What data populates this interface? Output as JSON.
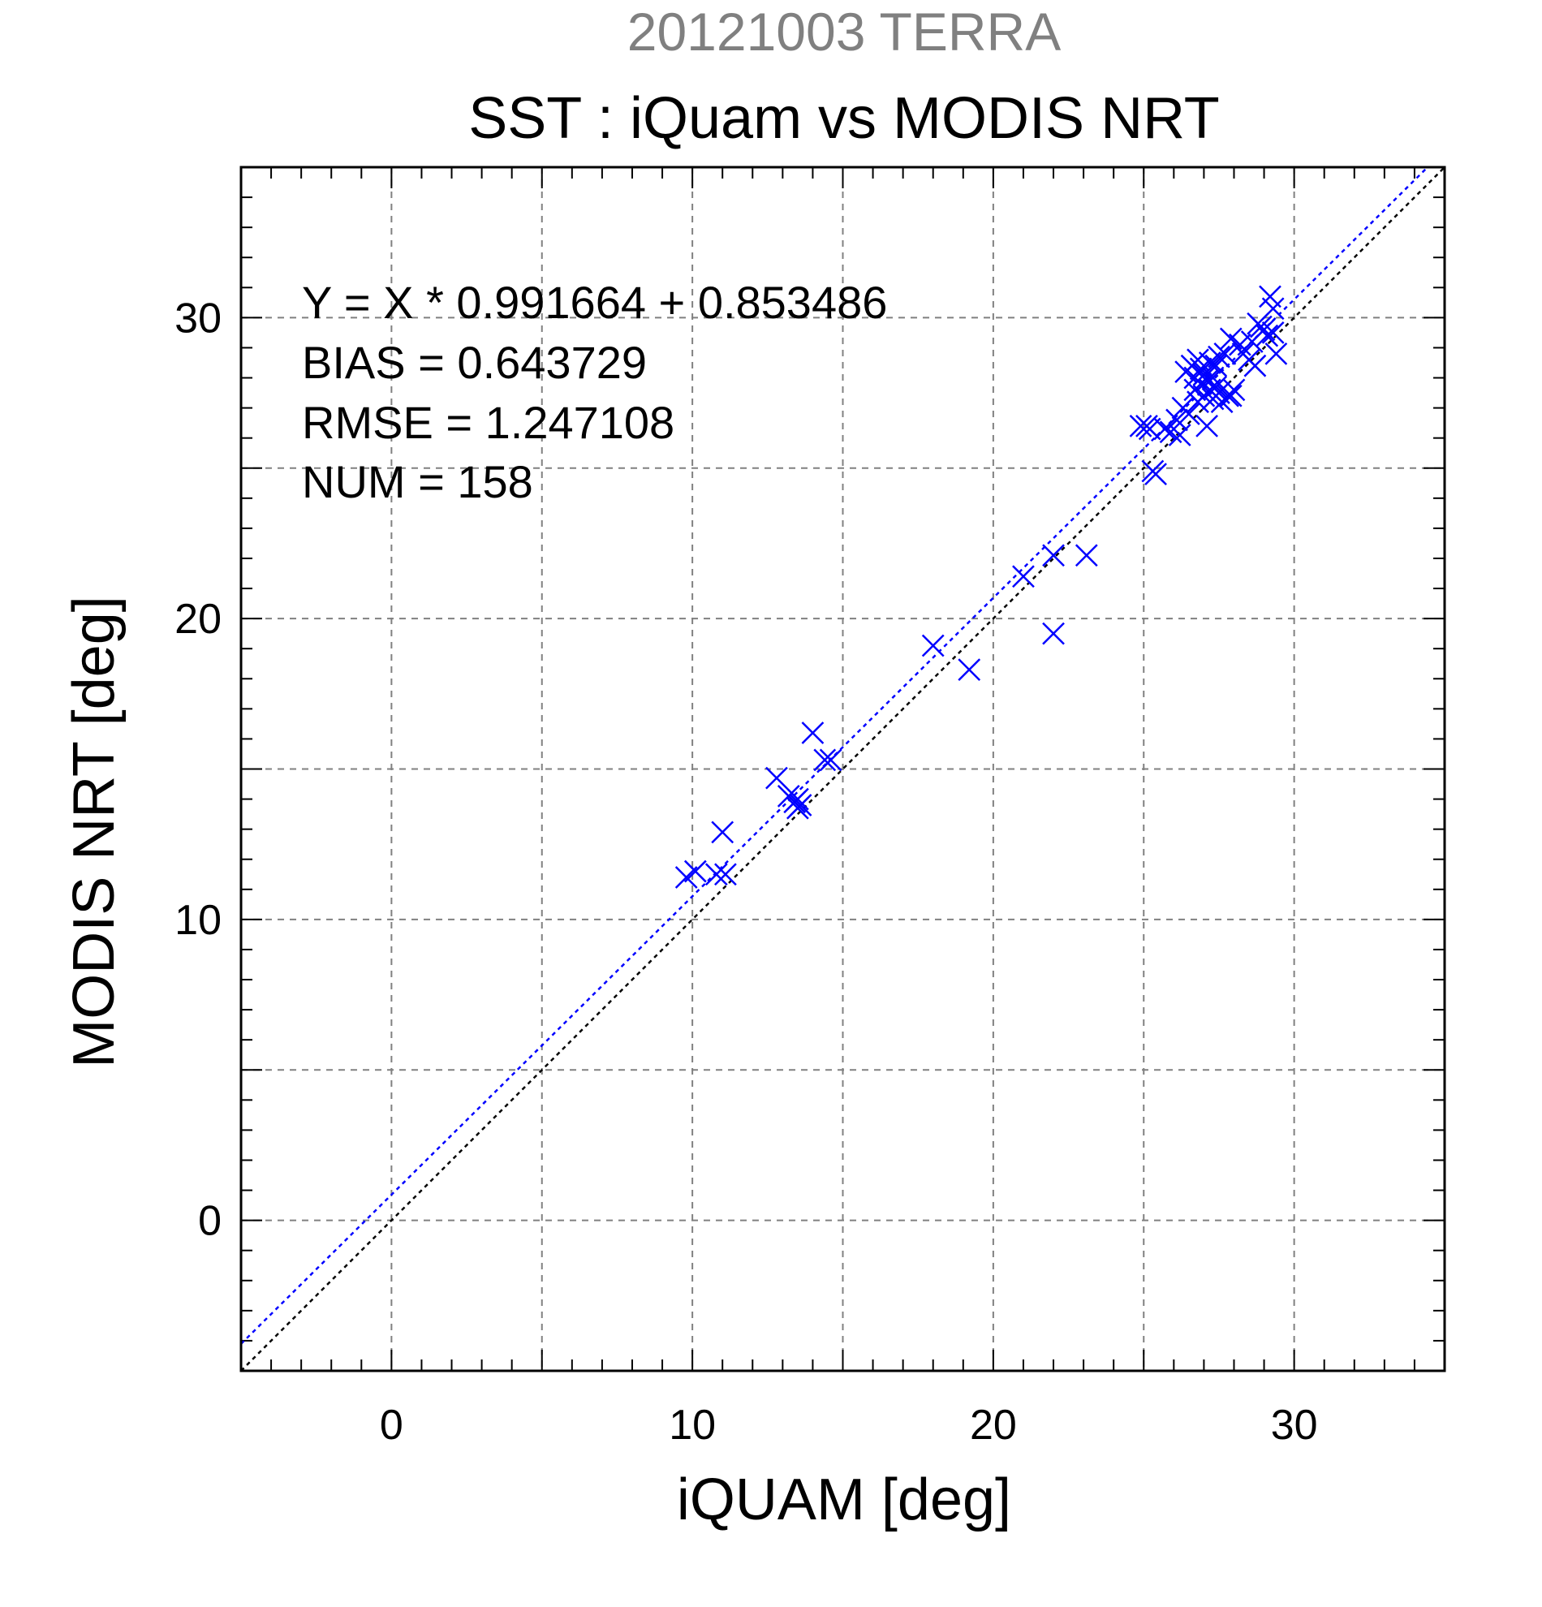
{
  "chart_data": {
    "type": "scatter",
    "supertitle": "20121003 TERRA",
    "title": "SST : iQuam vs MODIS NRT",
    "xlabel": "iQUAM [deg]",
    "ylabel": "MODIS NRT [deg]",
    "xlim": [
      -5,
      35
    ],
    "ylim": [
      -5,
      35
    ],
    "xticks": [
      0,
      10,
      20,
      30
    ],
    "yticks": [
      0,
      10,
      20,
      30
    ],
    "xtick_labels": [
      "0",
      "10",
      "20",
      "30"
    ],
    "ytick_labels": [
      "0",
      "10",
      "20",
      "30"
    ],
    "grid": true,
    "marker": "x",
    "colors": {
      "points": "#0000ff",
      "fit_line": "#0000ff",
      "identity_line": "#000000",
      "supertitle": "#808080"
    },
    "stats": [
      "Y = X * 0.991664 + 0.853486",
      "BIAS = 0.643729",
      "RMSE = 1.247108",
      "NUM = 158"
    ],
    "fit": {
      "slope": 0.991664,
      "intercept": 0.853486
    },
    "identity": {
      "slope": 1,
      "intercept": 0
    },
    "points": [
      [
        9.8,
        11.4
      ],
      [
        10.1,
        11.6
      ],
      [
        10.8,
        11.5
      ],
      [
        11.1,
        11.5
      ],
      [
        11.0,
        12.9
      ],
      [
        12.8,
        14.7
      ],
      [
        13.2,
        14.1
      ],
      [
        13.4,
        13.9
      ],
      [
        13.5,
        13.7
      ],
      [
        13.6,
        13.8
      ],
      [
        13.5,
        14.0
      ],
      [
        14.0,
        16.2
      ],
      [
        14.4,
        15.3
      ],
      [
        14.6,
        15.3
      ],
      [
        18.0,
        19.1
      ],
      [
        19.2,
        18.3
      ],
      [
        21.0,
        21.4
      ],
      [
        22.0,
        22.1
      ],
      [
        22.0,
        19.5
      ],
      [
        23.1,
        22.1
      ],
      [
        24.9,
        26.4
      ],
      [
        25.1,
        26.4
      ],
      [
        25.2,
        26.3
      ],
      [
        25.3,
        24.9
      ],
      [
        25.4,
        24.8
      ],
      [
        25.7,
        26.3
      ],
      [
        25.9,
        26.2
      ],
      [
        26.1,
        26.6
      ],
      [
        26.2,
        26.1
      ],
      [
        26.3,
        27.0
      ],
      [
        26.4,
        28.2
      ],
      [
        26.5,
        26.8
      ],
      [
        26.6,
        28.4
      ],
      [
        26.7,
        27.6
      ],
      [
        26.7,
        28.0
      ],
      [
        26.8,
        27.2
      ],
      [
        26.8,
        28.6
      ],
      [
        26.9,
        27.8
      ],
      [
        26.9,
        28.3
      ],
      [
        27.0,
        27.4
      ],
      [
        27.0,
        28.1
      ],
      [
        27.1,
        27.9
      ],
      [
        27.1,
        26.4
      ],
      [
        27.2,
        28.5
      ],
      [
        27.2,
        27.6
      ],
      [
        27.3,
        28.0
      ],
      [
        27.3,
        27.3
      ],
      [
        27.4,
        28.4
      ],
      [
        27.4,
        27.7
      ],
      [
        27.5,
        28.7
      ],
      [
        27.5,
        27.5
      ],
      [
        27.6,
        27.2
      ],
      [
        27.7,
        28.8
      ],
      [
        27.8,
        27.4
      ],
      [
        27.9,
        29.3
      ],
      [
        28.0,
        27.6
      ],
      [
        28.2,
        29.1
      ],
      [
        28.3,
        28.8
      ],
      [
        28.5,
        28.6
      ],
      [
        28.6,
        29.2
      ],
      [
        28.7,
        28.4
      ],
      [
        28.8,
        29.8
      ],
      [
        28.9,
        29.7
      ],
      [
        29.0,
        29.6
      ],
      [
        29.1,
        29.4
      ],
      [
        29.2,
        30.7
      ],
      [
        29.3,
        30.3
      ],
      [
        29.3,
        29.5
      ],
      [
        29.4,
        28.8
      ],
      [
        27.9,
        27.4
      ]
    ]
  }
}
